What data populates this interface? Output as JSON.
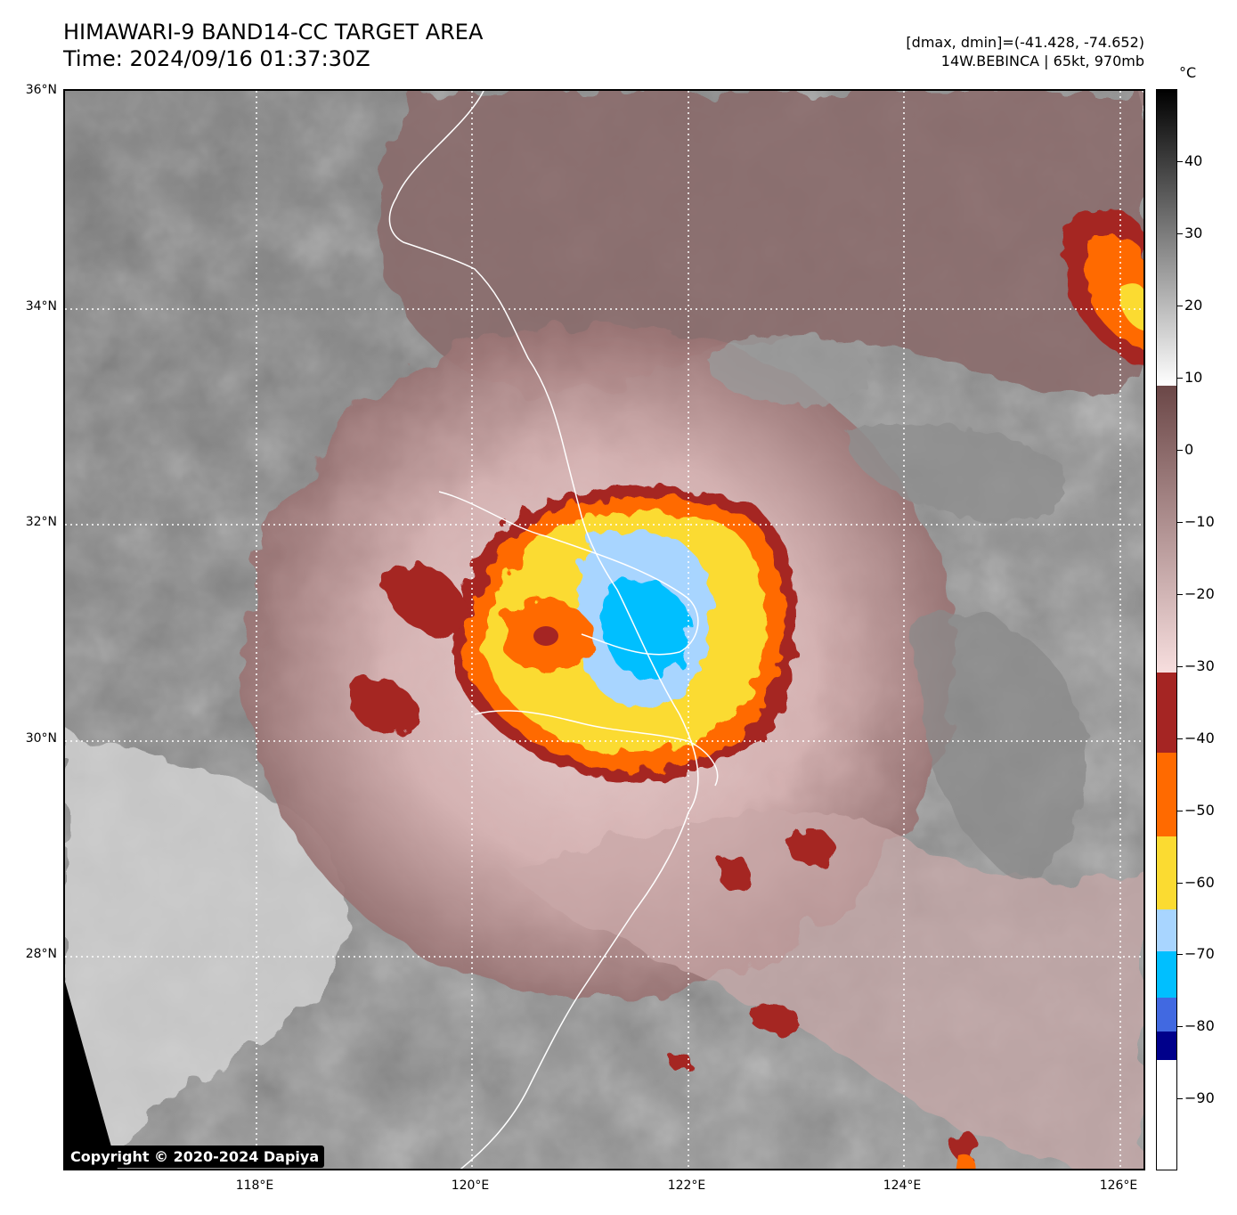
{
  "title_line1": "HIMAWARI-9 BAND14-CC TARGET AREA",
  "title_line2": "Time: 2024/09/16 01:37:30Z",
  "info_line1": "[dmax, dmin]=(-41.428, -74.652)",
  "info_line2": "14W.BEBINCA | 65kt, 970mb",
  "copyright": "Copyright © 2020-2024 Dapiya",
  "lat_labels": [
    "36°N",
    "34°N",
    "32°N",
    "30°N",
    "28°N"
  ],
  "lon_labels": [
    "118°E",
    "120°E",
    "122°E",
    "124°E",
    "126°E"
  ],
  "colorbar": {
    "unit": "°C",
    "tick_labels": [
      "40",
      "30",
      "20",
      "10",
      "0",
      "−10",
      "−20",
      "−30",
      "−40",
      "−50",
      "−60",
      "−70",
      "−80",
      "−90"
    ],
    "range": [
      -100,
      50
    ],
    "color_scale": [
      {
        "from": 50,
        "to": 10,
        "colors": [
          "#000000",
          "#ffffff"
        ]
      },
      {
        "from": 10,
        "to": -30,
        "colors": [
          "#6b4747",
          "#f7dede"
        ]
      },
      {
        "from": -30,
        "to": -40,
        "colors": [
          "#a52523"
        ]
      },
      {
        "from": -40,
        "to": -50,
        "colors": [
          "#ff6a00"
        ]
      },
      {
        "from": -50,
        "to": -60,
        "colors": [
          "#fbdb31"
        ]
      },
      {
        "from": -60,
        "to": -66,
        "colors": [
          "#a8d5ff"
        ]
      },
      {
        "from": -66,
        "to": -72,
        "colors": [
          "#00bfff"
        ]
      },
      {
        "from": -72,
        "to": -77,
        "colors": [
          "#4169e1"
        ]
      },
      {
        "from": -77,
        "to": -80,
        "colors": [
          "#00008b"
        ]
      },
      {
        "from": -80,
        "to": -100,
        "colors": [
          "#ffffff"
        ]
      }
    ]
  },
  "colors": {
    "eye_center": "#a52523",
    "coldest_tops": "#00bfff",
    "cold_ring": "#fbdb31",
    "outer_ring": "#ff6a00",
    "cirrus_shield": "#b89494",
    "land_clouds": "#808080",
    "coastline": "#ffffff",
    "grid": "#ffffff"
  }
}
